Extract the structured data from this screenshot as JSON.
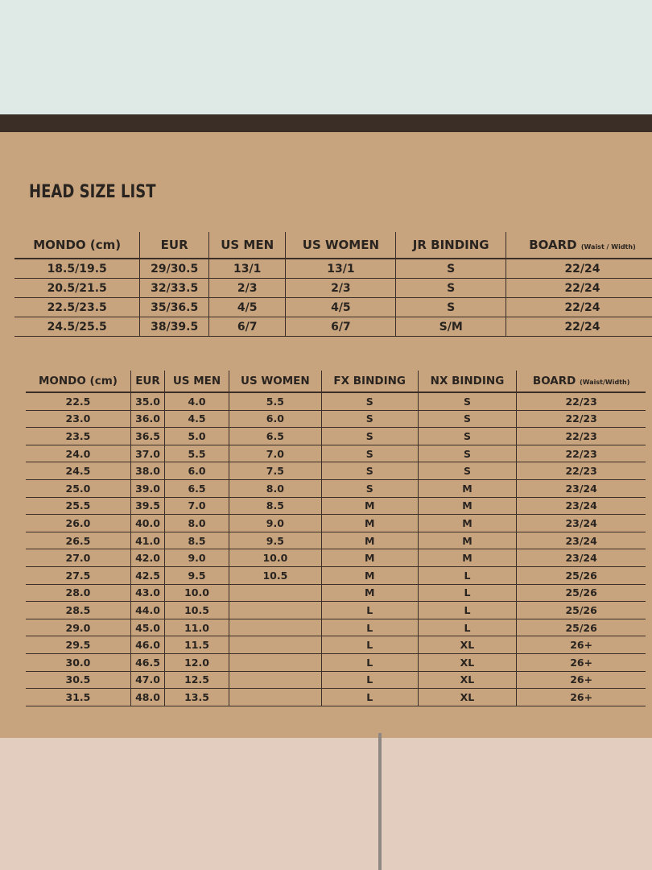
{
  "title": "HEAD SIZE LIST",
  "table1": {
    "header": [
      "MONDO (cm)",
      "EUR",
      "US MEN",
      "US WOMEN",
      "JR BINDING",
      {
        "main": "BOARD",
        "sub": "(Waist / Width)"
      }
    ],
    "rows": [
      [
        "18.5/19.5",
        "29/30.5",
        "13/1",
        "13/1",
        "S",
        "22/24"
      ],
      [
        "20.5/21.5",
        "32/33.5",
        "2/3",
        "2/3",
        "S",
        "22/24"
      ],
      [
        "22.5/23.5",
        "35/36.5",
        "4/5",
        "4/5",
        "S",
        "22/24"
      ],
      [
        "24.5/25.5",
        "38/39.5",
        "6/7",
        "6/7",
        "S/M",
        "22/24"
      ]
    ]
  },
  "table2": {
    "header": [
      "MONDO (cm)",
      "EUR",
      "US MEN",
      "US WOMEN",
      "FX BINDING",
      "NX BINDING",
      {
        "main": "BOARD",
        "sub": "(Waist/Width)"
      }
    ],
    "rows": [
      [
        "22.5",
        "35.0",
        "4.0",
        "5.5",
        "S",
        "S",
        "22/23"
      ],
      [
        "23.0",
        "36.0",
        "4.5",
        "6.0",
        "S",
        "S",
        "22/23"
      ],
      [
        "23.5",
        "36.5",
        "5.0",
        "6.5",
        "S",
        "S",
        "22/23"
      ],
      [
        "24.0",
        "37.0",
        "5.5",
        "7.0",
        "S",
        "S",
        "22/23"
      ],
      [
        "24.5",
        "38.0",
        "6.0",
        "7.5",
        "S",
        "S",
        "22/23"
      ],
      [
        "25.0",
        "39.0",
        "6.5",
        "8.0",
        "S",
        "M",
        "23/24"
      ],
      [
        "25.5",
        "39.5",
        "7.0",
        "8.5",
        "M",
        "M",
        "23/24"
      ],
      [
        "26.0",
        "40.0",
        "8.0",
        "9.0",
        "M",
        "M",
        "23/24"
      ],
      [
        "26.5",
        "41.0",
        "8.5",
        "9.5",
        "M",
        "M",
        "23/24"
      ],
      [
        "27.0",
        "42.0",
        "9.0",
        "10.0",
        "M",
        "M",
        "23/24"
      ],
      [
        "27.5",
        "42.5",
        "9.5",
        "10.5",
        "M",
        "L",
        "25/26"
      ],
      [
        "28.0",
        "43.0",
        "10.0",
        null,
        "M",
        "L",
        "25/26"
      ],
      [
        "28.5",
        "44.0",
        "10.5",
        null,
        "L",
        "L",
        "25/26"
      ],
      [
        "29.0",
        "45.0",
        "11.0",
        null,
        "L",
        "L",
        "25/26"
      ],
      [
        "29.5",
        "46.0",
        "11.5",
        null,
        "L",
        "XL",
        "26+"
      ],
      [
        "30.0",
        "46.5",
        "12.0",
        null,
        "L",
        "XL",
        "26+"
      ],
      [
        "30.5",
        "47.0",
        "12.5",
        null,
        "L",
        "XL",
        "26+"
      ],
      [
        "31.5",
        "48.0",
        "13.5",
        null,
        "L",
        "XL",
        "26+"
      ]
    ]
  }
}
